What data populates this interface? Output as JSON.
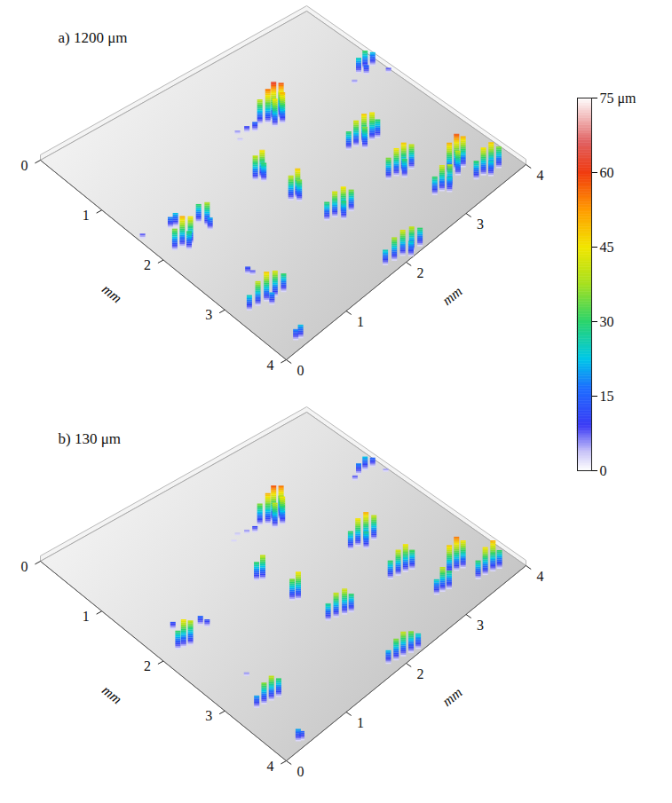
{
  "chart_data": [
    {
      "type": "surface3d",
      "title": "a) 1200 μm",
      "x_label": "mm",
      "y_label": "mm",
      "xlim": [
        0,
        4
      ],
      "ylim": [
        0,
        4
      ],
      "xticks": [
        0,
        1,
        2,
        3,
        4
      ],
      "yticks": [
        0,
        1,
        2,
        3,
        4
      ],
      "zlim": [
        0,
        75
      ],
      "points": [
        [
          2.3,
          1.15,
          40
        ],
        [
          2.38,
          1.2,
          55
        ],
        [
          2.46,
          1.21,
          62
        ],
        [
          2.54,
          1.25,
          58
        ],
        [
          2.5,
          1.32,
          50
        ],
        [
          2.4,
          1.3,
          45
        ],
        [
          2.6,
          1.18,
          35
        ],
        [
          2.1,
          1.15,
          10
        ],
        [
          2.18,
          1.2,
          15
        ],
        [
          2.0,
          1.1,
          6
        ],
        [
          1.95,
          1.2,
          4
        ],
        [
          3.7,
          1.3,
          25
        ],
        [
          3.8,
          1.3,
          30
        ],
        [
          3.9,
          1.32,
          22
        ],
        [
          3.75,
          1.38,
          15
        ],
        [
          3.95,
          1.55,
          8
        ],
        [
          3.55,
          1.4,
          6
        ],
        [
          2.75,
          2.2,
          30
        ],
        [
          2.85,
          2.22,
          42
        ],
        [
          2.95,
          2.25,
          48
        ],
        [
          3.05,
          2.28,
          45
        ],
        [
          3.12,
          2.3,
          30
        ],
        [
          2.9,
          2.32,
          35
        ],
        [
          2.75,
          2.9,
          35
        ],
        [
          2.85,
          2.93,
          45
        ],
        [
          2.95,
          2.95,
          48
        ],
        [
          3.05,
          2.98,
          40
        ],
        [
          2.9,
          3.02,
          30
        ],
        [
          3.3,
          3.38,
          50
        ],
        [
          3.4,
          3.4,
          58
        ],
        [
          3.48,
          3.43,
          50
        ],
        [
          3.35,
          3.48,
          40
        ],
        [
          2.95,
          3.5,
          30
        ],
        [
          3.05,
          3.52,
          42
        ],
        [
          3.15,
          3.55,
          38
        ],
        [
          3.1,
          3.6,
          25
        ],
        [
          3.45,
          3.7,
          30
        ],
        [
          3.55,
          3.72,
          45
        ],
        [
          3.65,
          3.75,
          48
        ],
        [
          3.75,
          3.78,
          35
        ],
        [
          3.6,
          3.8,
          25
        ],
        [
          1.8,
          2.85,
          30
        ],
        [
          1.9,
          2.88,
          42
        ],
        [
          2.0,
          2.92,
          45
        ],
        [
          2.1,
          2.95,
          35
        ],
        [
          1.95,
          2.98,
          30
        ],
        [
          1.8,
          3.85,
          25
        ],
        [
          1.92,
          3.88,
          38
        ],
        [
          2.04,
          3.9,
          42
        ],
        [
          2.16,
          3.93,
          40
        ],
        [
          2.28,
          3.95,
          30
        ],
        [
          2.1,
          3.98,
          25
        ],
        [
          1.72,
          2.32,
          40
        ],
        [
          1.8,
          2.35,
          48
        ],
        [
          1.78,
          2.4,
          35
        ],
        [
          1.64,
          1.8,
          40
        ],
        [
          1.72,
          1.83,
          46
        ],
        [
          1.7,
          1.88,
          30
        ],
        [
          0.2,
          1.98,
          35
        ],
        [
          0.3,
          2.0,
          50
        ],
        [
          0.4,
          2.03,
          45
        ],
        [
          0.33,
          2.08,
          30
        ],
        [
          0.4,
          1.7,
          18
        ],
        [
          0.46,
          1.72,
          22
        ],
        [
          0.7,
          1.85,
          30
        ],
        [
          0.74,
          1.95,
          38
        ],
        [
          0.72,
          2.02,
          20
        ],
        [
          0.2,
          3.2,
          25
        ],
        [
          0.32,
          3.22,
          40
        ],
        [
          0.44,
          3.24,
          48
        ],
        [
          0.56,
          3.26,
          42
        ],
        [
          0.68,
          3.28,
          30
        ],
        [
          0.45,
          3.32,
          20
        ],
        [
          0.28,
          3.88,
          18
        ],
        [
          0.34,
          3.9,
          22
        ],
        [
          0.05,
          1.61,
          8
        ],
        [
          0.57,
          2.8,
          12
        ],
        [
          0.6,
          2.85,
          8
        ]
      ]
    },
    {
      "type": "surface3d",
      "title": "b) 130 μm",
      "x_label": "mm",
      "y_label": "mm",
      "xlim": [
        0,
        4
      ],
      "ylim": [
        0,
        4
      ],
      "xticks": [
        0,
        1,
        2,
        3,
        4
      ],
      "yticks": [
        0,
        1,
        2,
        3,
        4
      ],
      "zlim": [
        0,
        75
      ],
      "points": [
        [
          2.3,
          1.15,
          35
        ],
        [
          2.38,
          1.2,
          50
        ],
        [
          2.46,
          1.21,
          58
        ],
        [
          2.54,
          1.25,
          55
        ],
        [
          2.5,
          1.32,
          45
        ],
        [
          2.4,
          1.3,
          40
        ],
        [
          2.6,
          1.18,
          30
        ],
        [
          2.1,
          1.15,
          6
        ],
        [
          2.18,
          1.2,
          10
        ],
        [
          2.0,
          1.1,
          4
        ],
        [
          1.9,
          1.15,
          3
        ],
        [
          3.7,
          1.3,
          18
        ],
        [
          3.8,
          1.3,
          22
        ],
        [
          3.9,
          1.32,
          15
        ],
        [
          3.6,
          1.35,
          8
        ],
        [
          3.95,
          1.5,
          5
        ],
        [
          2.78,
          2.2,
          30
        ],
        [
          2.88,
          2.22,
          45
        ],
        [
          2.98,
          2.25,
          50
        ],
        [
          3.08,
          2.28,
          40
        ],
        [
          2.92,
          2.32,
          28
        ],
        [
          2.78,
          2.9,
          30
        ],
        [
          2.88,
          2.93,
          42
        ],
        [
          2.98,
          2.95,
          45
        ],
        [
          3.06,
          2.98,
          32
        ],
        [
          3.3,
          3.38,
          48
        ],
        [
          3.4,
          3.4,
          55
        ],
        [
          3.48,
          3.43,
          45
        ],
        [
          2.98,
          3.5,
          25
        ],
        [
          3.06,
          3.52,
          40
        ],
        [
          3.14,
          3.55,
          30
        ],
        [
          3.48,
          3.7,
          30
        ],
        [
          3.58,
          3.72,
          45
        ],
        [
          3.68,
          3.75,
          50
        ],
        [
          3.76,
          3.78,
          30
        ],
        [
          1.82,
          2.85,
          28
        ],
        [
          1.92,
          2.88,
          40
        ],
        [
          2.02,
          2.92,
          42
        ],
        [
          2.1,
          2.95,
          30
        ],
        [
          1.85,
          3.85,
          22
        ],
        [
          1.95,
          3.88,
          35
        ],
        [
          2.05,
          3.9,
          40
        ],
        [
          2.15,
          3.93,
          35
        ],
        [
          2.25,
          3.95,
          25
        ],
        [
          1.74,
          2.32,
          35
        ],
        [
          1.8,
          2.36,
          45
        ],
        [
          1.66,
          1.8,
          30
        ],
        [
          1.72,
          1.84,
          40
        ],
        [
          0.25,
          1.98,
          30
        ],
        [
          0.32,
          2.0,
          45
        ],
        [
          0.4,
          2.03,
          40
        ],
        [
          0.42,
          1.72,
          12
        ],
        [
          0.7,
          1.88,
          15
        ],
        [
          0.74,
          1.95,
          12
        ],
        [
          0.3,
          3.22,
          20
        ],
        [
          0.4,
          3.24,
          35
        ],
        [
          0.5,
          3.26,
          40
        ],
        [
          0.6,
          3.28,
          30
        ],
        [
          0.3,
          3.9,
          20
        ],
        [
          0.34,
          3.92,
          15
        ],
        [
          0.55,
          2.8,
          6
        ]
      ]
    }
  ],
  "colorbar": {
    "range": [
      0,
      75
    ],
    "ticks": [
      0,
      15,
      30,
      45,
      60,
      {
        "value": 75,
        "label": "75 μm"
      }
    ]
  }
}
